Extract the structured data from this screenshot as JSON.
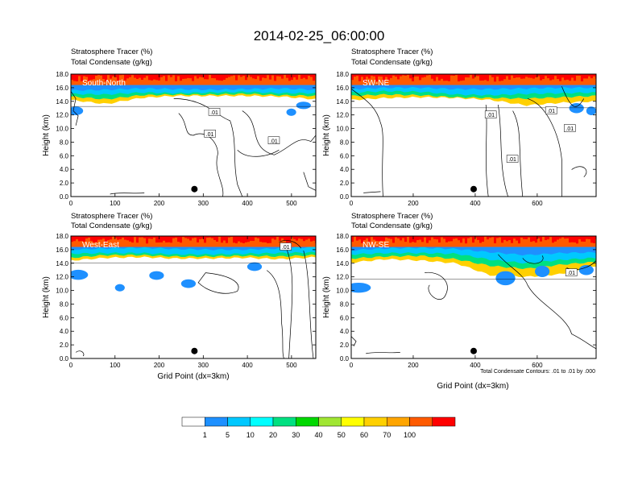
{
  "figure": {
    "title": "2014-02-25_06:00:00",
    "xlabel": "Grid Point (dx=3km)",
    "ylabel": "Height (km)",
    "field_title": "Stratosphere Tracer   (%)",
    "contour_title": "Total Condensate   (g/kg)",
    "contour_note": "Total Condensate Contours: .01 to .01 by .000",
    "contour_label": ".01"
  },
  "colors": {
    "levels": [
      "#ffffff",
      "#1e90ff",
      "#00c8ff",
      "#00ffff",
      "#00e080",
      "#00d800",
      "#a0e632",
      "#ffff00",
      "#ffd000",
      "#ffa500",
      "#ff5a00",
      "#ff0000"
    ],
    "contour": "#000000",
    "marker": "#000000"
  },
  "chart_data": [
    {
      "type": "heatmap",
      "panel": "South-North",
      "title": "Stratosphere Tracer   (%)",
      "subtitle": "Total Condensate   (g/kg)",
      "xlim": [
        0,
        555
      ],
      "ylim": [
        0,
        18
      ],
      "xticks": [
        "0",
        "100",
        "200",
        "300",
        "400",
        "500"
      ],
      "yticks": [
        "0.0",
        "2.0",
        "4.0",
        "6.0",
        "8.0",
        "10.0",
        "12.0",
        "14.0",
        "16.0",
        "18.0"
      ],
      "ylabel": "Height (km)",
      "marker": {
        "x": 280,
        "y": 1.1
      },
      "tracer_top_km": 18,
      "tracer_base_km": 13.6,
      "contour_labels": [
        [
          325,
          12.4
        ],
        [
          315,
          9.2
        ],
        [
          460,
          8.2
        ]
      ]
    },
    {
      "type": "heatmap",
      "panel": "SW-NE",
      "title": "Stratosphere Tracer   (%)",
      "subtitle": "Total Condensate   (g/kg)",
      "xlim": [
        0,
        790
      ],
      "ylim": [
        0,
        18
      ],
      "xticks": [
        "0",
        "200",
        "400",
        "600"
      ],
      "yticks": [
        "0.0",
        "2.0",
        "4.0",
        "6.0",
        "8.0",
        "10.0",
        "12.0",
        "14.0",
        "16.0",
        "18.0"
      ],
      "ylabel": "Height (km)",
      "marker": {
        "x": 395,
        "y": 1.1
      },
      "tracer_top_km": 18,
      "tracer_base_km": 13.4,
      "contour_labels": [
        [
          450,
          12.0
        ],
        [
          645,
          12.6
        ],
        [
          705,
          10.0
        ],
        [
          520,
          5.5
        ]
      ]
    },
    {
      "type": "heatmap",
      "panel": "West-East",
      "title": "Stratosphere Tracer   (%)",
      "subtitle": "Total Condensate   (g/kg)",
      "xlim": [
        0,
        555
      ],
      "ylim": [
        0,
        18
      ],
      "xticks": [
        "0",
        "100",
        "200",
        "300",
        "400",
        "500"
      ],
      "yticks": [
        "0.0",
        "2.0",
        "4.0",
        "6.0",
        "8.0",
        "10.0",
        "12.0",
        "14.0",
        "16.0",
        "18.0"
      ],
      "xlabel": "Grid Point (dx=3km)",
      "ylabel": "Height (km)",
      "marker": {
        "x": 280,
        "y": 1.1
      },
      "tracer_top_km": 18,
      "tracer_base_km": 14.4,
      "contour_labels": [
        [
          487,
          16.4
        ]
      ]
    },
    {
      "type": "heatmap",
      "panel": "NW-SE",
      "title": "Stratosphere Tracer   (%)",
      "subtitle": "Total Condensate   (g/kg)",
      "xlim": [
        0,
        790
      ],
      "ylim": [
        0,
        18
      ],
      "xticks": [
        "0",
        "200",
        "400",
        "600"
      ],
      "yticks": [
        "0.0",
        "2.0",
        "4.0",
        "6.0",
        "8.0",
        "10.0",
        "12.0",
        "14.0",
        "16.0",
        "18.0"
      ],
      "xlabel": "Grid Point (dx=3km)",
      "ylabel": "Height (km)",
      "marker": {
        "x": 395,
        "y": 1.1
      },
      "tracer_top_km": 18,
      "tracer_base_km": 12.0,
      "contour_labels": [
        [
          710,
          12.6
        ]
      ]
    }
  ],
  "colorbar": {
    "labels": [
      "1",
      "5",
      "10",
      "20",
      "30",
      "40",
      "50",
      "60",
      "70",
      "100"
    ]
  }
}
